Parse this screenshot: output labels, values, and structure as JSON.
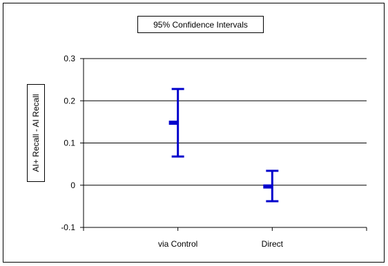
{
  "chart_data": {
    "type": "errorbar",
    "title": "95% Confidence Intervals",
    "xlabel": "",
    "ylabel": "AI+ Recall - AI Recall",
    "categories": [
      "via Control",
      "Direct"
    ],
    "series": [
      {
        "estimates": [
          0.148,
          -0.003
        ],
        "lower": [
          0.068,
          -0.038
        ],
        "upper": [
          0.228,
          0.034
        ]
      }
    ],
    "ylim": [
      -0.1,
      0.3
    ],
    "yticks": [
      -0.1,
      0,
      0.1,
      0.2,
      0.3
    ],
    "ytick_labels": [
      "-0.1",
      "0",
      "0.1",
      "0.2",
      "0.3"
    ],
    "grid": true,
    "legend": "none",
    "colors": {
      "series": "#0000CC",
      "grid": "#000000",
      "background": "#ffffff"
    }
  }
}
